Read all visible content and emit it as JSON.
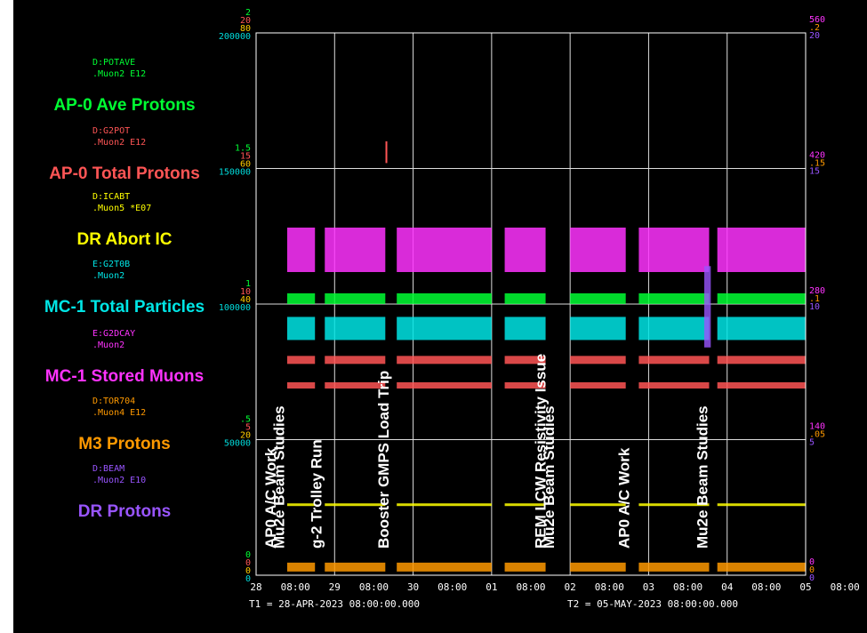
{
  "chart_data": {
    "type": "scatter",
    "t1": "T1 = 28-APR-2023 08:00:00.000",
    "t2": "T2 = 05-MAY-2023 08:00:00.000",
    "x_range": [
      "2023-04-28 08:00",
      "2023-05-05 08:00"
    ],
    "x_tick_labels": [
      "28",
      "08:00",
      "29",
      "08:00",
      "30",
      "08:00",
      "01",
      "08:00",
      "02",
      "08:00",
      "03",
      "08:00",
      "04",
      "08:00",
      "05",
      "08:00"
    ],
    "grid": true,
    "left_axis": {
      "rows": [
        [
          "2",
          "20",
          "80",
          "200000"
        ],
        [
          "1.5",
          "15",
          "60",
          "150000"
        ],
        [
          "1",
          "10",
          "40",
          "100000"
        ],
        [
          ".5",
          "5",
          "20",
          "50000"
        ],
        [
          "0",
          "0",
          "0",
          "0"
        ]
      ],
      "colors": [
        "#00ff33",
        "#ff5555",
        "#ffcc00",
        "#00dddd"
      ]
    },
    "right_axis": {
      "rows": [
        [
          "560",
          ".2",
          "20"
        ],
        [
          "420",
          ".15",
          "15"
        ],
        [
          "280",
          ".1",
          "10"
        ],
        [
          "140",
          ".05",
          "5"
        ],
        [
          "0",
          "0",
          "0"
        ]
      ],
      "colors": [
        "#ff33ff",
        "#ff9900",
        "#9955ff"
      ]
    },
    "legend": [
      {
        "device": "D:POTAVE",
        "units": ".Muon2  E12",
        "label": "AP-0 Ave Protons",
        "color": "#00ff33"
      },
      {
        "device": "D:G2POT",
        "units": ".Muon2  E12",
        "label": "AP-0 Total Protons",
        "color": "#ff5555"
      },
      {
        "device": "D:ICABT",
        "units": ".Muon5  *E07",
        "label": "DR Abort IC",
        "color": "#ffff00"
      },
      {
        "device": "E:G2T0B",
        "units": ".Muon2",
        "label": "MC-1 Total Particles",
        "color": "#00e5e5"
      },
      {
        "device": "E:G2DCAY",
        "units": ".Muon2",
        "label": "MC-1 Stored Muons",
        "color": "#ff33ff"
      },
      {
        "device": "D:TOR704",
        "units": ".Muon4  E12",
        "label": "M3 Protons",
        "color": "#ff9900"
      },
      {
        "device": "D:BEAM",
        "units": ".Muon2  E10",
        "label": "DR Protons",
        "color": "#9955ff"
      }
    ],
    "annotations": [
      {
        "at": "2023-04-28 14:00",
        "text": "AP0 A/C Work"
      },
      {
        "at": "2023-04-28 16:30",
        "text": "Mu2e Beam Studies"
      },
      {
        "at": "2023-04-29 04:00",
        "text": "g-2 Trolley Run"
      },
      {
        "at": "2023-04-30 00:30",
        "text": "Booster GMPS Load Trip"
      },
      {
        "at": "2023-05-02 00:30",
        "text": "REM LCW Resistivity Issue"
      },
      {
        "at": "2023-05-02 03:00",
        "text": "Mu2e Beam Studies"
      },
      {
        "at": "2023-05-03 02:00",
        "text": "AP0 A/C Work"
      },
      {
        "at": "2023-05-04 02:00",
        "text": "Mu2e Beam Studies"
      }
    ]
  }
}
